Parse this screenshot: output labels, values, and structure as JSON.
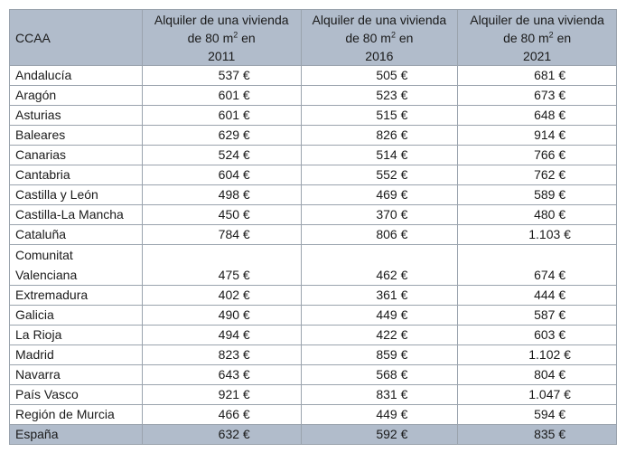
{
  "table": {
    "headers": [
      "CCAA",
      "Alquiler de una vivienda de 80 m",
      "Alquiler de una vivienda de 80 m",
      "Alquiler de una vivienda de 80 m"
    ],
    "header_sup": "2",
    "header_suffix": " en",
    "years": [
      "2011",
      "2016",
      "2021"
    ],
    "rows": [
      {
        "ccaa": "Andalucía",
        "v2011": "537 €",
        "v2016": "505 €",
        "v2021": "681 €"
      },
      {
        "ccaa": "Aragón",
        "v2011": "601 €",
        "v2016": "523 €",
        "v2021": "673 €"
      },
      {
        "ccaa": "Asturias",
        "v2011": "601 €",
        "v2016": "515 €",
        "v2021": "648 €"
      },
      {
        "ccaa": "Baleares",
        "v2011": "629 €",
        "v2016": "826 €",
        "v2021": "914 €"
      },
      {
        "ccaa": "Canarias",
        "v2011": "524 €",
        "v2016": "514 €",
        "v2021": "766 €"
      },
      {
        "ccaa": "Cantabria",
        "v2011": "604 €",
        "v2016": "552 €",
        "v2021": "762 €"
      },
      {
        "ccaa": "Castilla y León",
        "v2011": "498 €",
        "v2016": "469 €",
        "v2021": "589 €"
      },
      {
        "ccaa": "Castilla-La Mancha",
        "v2011": "450 €",
        "v2016": "370 €",
        "v2021": "480 €"
      },
      {
        "ccaa": "Cataluña",
        "v2011": "784 €",
        "v2016": "806 €",
        "v2021": "1.103 €"
      },
      {
        "ccaa": "Comunitat Valenciana",
        "v2011": "475 €",
        "v2016": "462 €",
        "v2021": "674 €"
      },
      {
        "ccaa": "Extremadura",
        "v2011": "402 €",
        "v2016": "361 €",
        "v2021": "444 €"
      },
      {
        "ccaa": "Galicia",
        "v2011": "490 €",
        "v2016": "449 €",
        "v2021": "587 €"
      },
      {
        "ccaa": "La Rioja",
        "v2011": "494 €",
        "v2016": "422 €",
        "v2021": "603 €"
      },
      {
        "ccaa": "Madrid",
        "v2011": "823 €",
        "v2016": "859 €",
        "v2021": "1.102 €"
      },
      {
        "ccaa": "Navarra",
        "v2011": "643 €",
        "v2016": "568 €",
        "v2021": "804 €"
      },
      {
        "ccaa": "País Vasco",
        "v2011": "921 €",
        "v2016": "831 €",
        "v2021": "1.047 €"
      },
      {
        "ccaa": "Región de Murcia",
        "v2011": "466 €",
        "v2016": "449 €",
        "v2021": "594 €"
      }
    ],
    "total": {
      "ccaa": "España",
      "v2011": "632 €",
      "v2016": "592 €",
      "v2021": "835 €"
    },
    "colors": {
      "header_bg": "#b1bccb",
      "border": "#9aa3ad"
    }
  }
}
